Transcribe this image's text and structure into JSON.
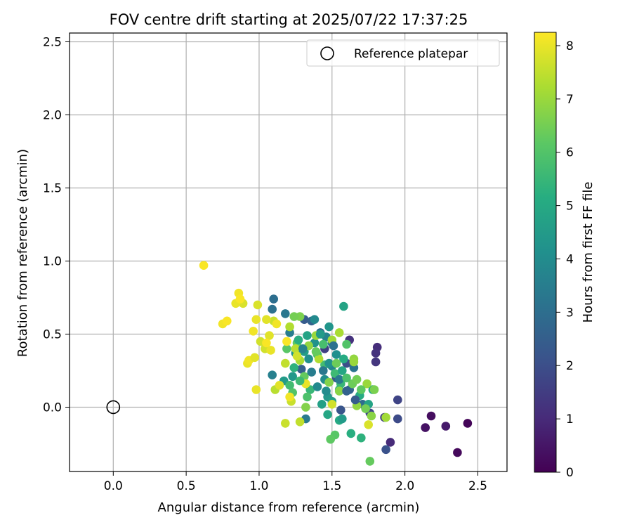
{
  "chart_data": {
    "type": "scatter",
    "title": "FOV centre drift starting at 2025/07/22 17:37:25",
    "xlabel": "Angular distance from reference (arcmin)",
    "ylabel": "Rotation from reference (arcmin)",
    "xlim": [
      -0.3,
      2.7
    ],
    "ylim": [
      -0.44,
      2.56
    ],
    "xticks": [
      "0.0",
      "0.5",
      "1.0",
      "1.5",
      "2.0",
      "2.5"
    ],
    "xtick_values": [
      0,
      0.5,
      1.0,
      1.5,
      2.0,
      2.5
    ],
    "yticks": [
      "0.0",
      "0.5",
      "1.0",
      "1.5",
      "2.0",
      "2.5"
    ],
    "ytick_values": [
      0,
      0.5,
      1.0,
      1.5,
      2.0,
      2.5
    ],
    "grid": true,
    "legend": {
      "entries": [
        "Reference platepar"
      ],
      "placement": "top-right"
    },
    "reference_point": {
      "name": "Reference platepar",
      "x": 0.0,
      "y": 0.0
    },
    "colorbar": {
      "label": "Hours from first FF file",
      "colormap": "viridis",
      "range": [
        0,
        8.25
      ],
      "ticks": [
        "0",
        "1",
        "2",
        "3",
        "4",
        "5",
        "6",
        "7",
        "8"
      ],
      "tick_values": [
        0,
        1,
        2,
        3,
        4,
        5,
        6,
        7,
        8
      ]
    },
    "points": [
      {
        "x": 2.43,
        "y": -0.11,
        "h": 0.1
      },
      {
        "x": 2.36,
        "y": -0.31,
        "h": 0.2
      },
      {
        "x": 2.18,
        "y": -0.06,
        "h": 0.3
      },
      {
        "x": 2.14,
        "y": -0.14,
        "h": 0.4
      },
      {
        "x": 2.28,
        "y": -0.13,
        "h": 0.6
      },
      {
        "x": 1.9,
        "y": -0.24,
        "h": 1.0
      },
      {
        "x": 1.81,
        "y": 0.41,
        "h": 1.1
      },
      {
        "x": 1.8,
        "y": 0.37,
        "h": 1.2
      },
      {
        "x": 1.8,
        "y": 0.31,
        "h": 1.3
      },
      {
        "x": 1.86,
        "y": -0.07,
        "h": 1.5
      },
      {
        "x": 1.95,
        "y": 0.05,
        "h": 1.7
      },
      {
        "x": 1.95,
        "y": -0.08,
        "h": 1.9
      },
      {
        "x": 1.87,
        "y": -0.29,
        "h": 2.1
      },
      {
        "x": 1.62,
        "y": 0.46,
        "h": 1.2
      },
      {
        "x": 1.45,
        "y": 0.4,
        "h": 1.6
      },
      {
        "x": 1.76,
        "y": -0.04,
        "h": 1.8
      },
      {
        "x": 1.6,
        "y": 0.3,
        "h": 2.0
      },
      {
        "x": 1.56,
        "y": -0.02,
        "h": 2.2
      },
      {
        "x": 1.53,
        "y": 0.2,
        "h": 2.3
      },
      {
        "x": 1.31,
        "y": 0.6,
        "h": 2.4
      },
      {
        "x": 1.36,
        "y": 0.59,
        "h": 2.6
      },
      {
        "x": 1.42,
        "y": 0.51,
        "h": 2.8
      },
      {
        "x": 1.29,
        "y": 0.26,
        "h": 2.5
      },
      {
        "x": 1.1,
        "y": 0.74,
        "h": 3.0
      },
      {
        "x": 1.09,
        "y": 0.67,
        "h": 3.1
      },
      {
        "x": 1.18,
        "y": 0.64,
        "h": 3.3
      },
      {
        "x": 1.32,
        "y": -0.08,
        "h": 3.4
      },
      {
        "x": 1.21,
        "y": 0.51,
        "h": 3.5
      },
      {
        "x": 1.46,
        "y": 0.48,
        "h": 3.7
      },
      {
        "x": 1.5,
        "y": 0.44,
        "h": 3.6
      },
      {
        "x": 1.38,
        "y": 0.6,
        "h": 3.9
      },
      {
        "x": 1.62,
        "y": 0.12,
        "h": 2.7
      },
      {
        "x": 1.71,
        "y": 0.02,
        "h": 2.9
      },
      {
        "x": 1.65,
        "y": 0.27,
        "h": 3.2
      },
      {
        "x": 1.5,
        "y": 0.28,
        "h": 3.8
      },
      {
        "x": 1.45,
        "y": 0.19,
        "h": 4.0
      },
      {
        "x": 1.34,
        "y": 0.33,
        "h": 4.1
      },
      {
        "x": 1.38,
        "y": 0.44,
        "h": 4.2
      },
      {
        "x": 1.25,
        "y": 0.37,
        "h": 4.3
      },
      {
        "x": 1.23,
        "y": 0.21,
        "h": 4.4
      },
      {
        "x": 1.17,
        "y": 0.18,
        "h": 4.5
      },
      {
        "x": 1.09,
        "y": 0.22,
        "h": 3.6
      },
      {
        "x": 1.47,
        "y": 0.07,
        "h": 4.4
      },
      {
        "x": 1.5,
        "y": 0.04,
        "h": 4.6
      },
      {
        "x": 1.53,
        "y": 0.36,
        "h": 4.1
      },
      {
        "x": 1.48,
        "y": 0.55,
        "h": 4.3
      },
      {
        "x": 1.58,
        "y": 0.69,
        "h": 4.8
      },
      {
        "x": 1.31,
        "y": 0.38,
        "h": 4.6
      },
      {
        "x": 1.43,
        "y": 0.02,
        "h": 4.7
      },
      {
        "x": 1.47,
        "y": -0.05,
        "h": 4.9
      },
      {
        "x": 1.55,
        "y": -0.09,
        "h": 5.0
      },
      {
        "x": 1.63,
        "y": -0.18,
        "h": 5.2
      },
      {
        "x": 1.7,
        "y": -0.21,
        "h": 5.3
      },
      {
        "x": 1.69,
        "y": 0.08,
        "h": 5.1
      },
      {
        "x": 1.75,
        "y": 0.02,
        "h": 4.8
      },
      {
        "x": 1.78,
        "y": 0.12,
        "h": 5.0
      },
      {
        "x": 1.55,
        "y": 0.12,
        "h": 5.4
      },
      {
        "x": 1.56,
        "y": 0.16,
        "h": 5.5
      },
      {
        "x": 1.52,
        "y": 0.23,
        "h": 5.6
      },
      {
        "x": 1.45,
        "y": 0.29,
        "h": 5.7
      },
      {
        "x": 1.4,
        "y": 0.36,
        "h": 5.8
      },
      {
        "x": 1.35,
        "y": 0.12,
        "h": 5.5
      },
      {
        "x": 1.33,
        "y": 0.07,
        "h": 5.9
      },
      {
        "x": 1.21,
        "y": 0.15,
        "h": 5.7
      },
      {
        "x": 1.23,
        "y": 0.1,
        "h": 6.0
      },
      {
        "x": 1.19,
        "y": 0.4,
        "h": 6.1
      },
      {
        "x": 1.26,
        "y": 0.44,
        "h": 6.2
      },
      {
        "x": 1.31,
        "y": 0.21,
        "h": 6.3
      },
      {
        "x": 1.6,
        "y": 0.43,
        "h": 6.0
      },
      {
        "x": 1.52,
        "y": -0.19,
        "h": 6.1
      },
      {
        "x": 1.49,
        "y": -0.22,
        "h": 6.2
      },
      {
        "x": 1.64,
        "y": 0.16,
        "h": 6.4
      },
      {
        "x": 1.73,
        "y": -0.01,
        "h": 6.5
      },
      {
        "x": 1.76,
        "y": -0.37,
        "h": 6.3
      },
      {
        "x": 1.79,
        "y": 0.12,
        "h": 6.6
      },
      {
        "x": 1.48,
        "y": 0.17,
        "h": 6.7
      },
      {
        "x": 1.55,
        "y": 0.11,
        "h": 6.8
      },
      {
        "x": 1.67,
        "y": 0.19,
        "h": 6.5
      },
      {
        "x": 1.67,
        "y": 0.01,
        "h": 6.9
      },
      {
        "x": 1.77,
        "y": -0.06,
        "h": 6.8
      },
      {
        "x": 1.74,
        "y": 0.16,
        "h": 7.0
      },
      {
        "x": 1.87,
        "y": -0.07,
        "h": 7.1
      },
      {
        "x": 1.65,
        "y": 0.33,
        "h": 6.9
      },
      {
        "x": 1.65,
        "y": 0.31,
        "h": 7.0
      },
      {
        "x": 1.39,
        "y": 0.49,
        "h": 7.0
      },
      {
        "x": 1.32,
        "y": 0.0,
        "h": 6.7
      },
      {
        "x": 1.28,
        "y": 0.62,
        "h": 6.6
      },
      {
        "x": 1.24,
        "y": 0.62,
        "h": 6.5
      },
      {
        "x": 1.55,
        "y": 0.51,
        "h": 7.2
      },
      {
        "x": 1.5,
        "y": 0.46,
        "h": 7.1
      },
      {
        "x": 1.41,
        "y": 0.33,
        "h": 7.3
      },
      {
        "x": 1.28,
        "y": 0.32,
        "h": 7.2
      },
      {
        "x": 1.25,
        "y": 0.4,
        "h": 7.4
      },
      {
        "x": 1.21,
        "y": 0.55,
        "h": 7.3
      },
      {
        "x": 1.18,
        "y": 0.3,
        "h": 7.5
      },
      {
        "x": 1.11,
        "y": 0.12,
        "h": 7.4
      },
      {
        "x": 1.18,
        "y": -0.11,
        "h": 7.6
      },
      {
        "x": 1.28,
        "y": -0.1,
        "h": 7.5
      },
      {
        "x": 1.22,
        "y": 0.04,
        "h": 7.6
      },
      {
        "x": 1.5,
        "y": 0.02,
        "h": 7.7
      },
      {
        "x": 1.75,
        "y": -0.12,
        "h": 7.8
      },
      {
        "x": 1.01,
        "y": 0.45,
        "h": 7.7
      },
      {
        "x": 0.99,
        "y": 0.7,
        "h": 7.8
      },
      {
        "x": 1.07,
        "y": 0.49,
        "h": 7.9
      },
      {
        "x": 1.1,
        "y": 0.59,
        "h": 7.6
      },
      {
        "x": 1.05,
        "y": 0.6,
        "h": 7.9
      },
      {
        "x": 0.98,
        "y": 0.6,
        "h": 8.0
      },
      {
        "x": 0.96,
        "y": 0.52,
        "h": 8.1
      },
      {
        "x": 0.89,
        "y": 0.71,
        "h": 7.8
      },
      {
        "x": 0.84,
        "y": 0.71,
        "h": 8.0
      },
      {
        "x": 0.86,
        "y": 0.78,
        "h": 8.1
      },
      {
        "x": 0.87,
        "y": 0.74,
        "h": 8.2
      },
      {
        "x": 0.75,
        "y": 0.57,
        "h": 8.1
      },
      {
        "x": 0.78,
        "y": 0.59,
        "h": 8.2
      },
      {
        "x": 0.62,
        "y": 0.97,
        "h": 8.2
      },
      {
        "x": 0.92,
        "y": 0.3,
        "h": 8.0
      },
      {
        "x": 0.93,
        "y": 0.32,
        "h": 8.1
      },
      {
        "x": 0.97,
        "y": 0.34,
        "h": 7.9
      },
      {
        "x": 0.98,
        "y": 0.12,
        "h": 8.0
      },
      {
        "x": 1.04,
        "y": 0.4,
        "h": 7.7
      },
      {
        "x": 1.08,
        "y": 0.39,
        "h": 8.0
      },
      {
        "x": 1.05,
        "y": 0.44,
        "h": 8.2
      },
      {
        "x": 1.12,
        "y": 0.57,
        "h": 8.1
      },
      {
        "x": 1.14,
        "y": 0.15,
        "h": 7.9
      },
      {
        "x": 1.21,
        "y": 0.07,
        "h": 8.1
      },
      {
        "x": 1.19,
        "y": 0.45,
        "h": 8.2
      },
      {
        "x": 1.32,
        "y": 0.16,
        "h": 8.0
      },
      {
        "x": 1.26,
        "y": 0.35,
        "h": 7.7
      },
      {
        "x": 1.34,
        "y": 0.42,
        "h": 6.9
      },
      {
        "x": 1.58,
        "y": 0.33,
        "h": 5.1
      },
      {
        "x": 1.57,
        "y": 0.25,
        "h": 4.9
      },
      {
        "x": 1.48,
        "y": 0.3,
        "h": 4.2
      },
      {
        "x": 1.51,
        "y": 0.42,
        "h": 3.1
      },
      {
        "x": 1.44,
        "y": 0.25,
        "h": 3.3
      },
      {
        "x": 1.36,
        "y": 0.24,
        "h": 3.5
      },
      {
        "x": 1.3,
        "y": 0.4,
        "h": 3.7
      },
      {
        "x": 1.4,
        "y": 0.14,
        "h": 3.9
      },
      {
        "x": 1.46,
        "y": 0.11,
        "h": 4.0
      },
      {
        "x": 1.6,
        "y": 0.11,
        "h": 2.6
      },
      {
        "x": 1.66,
        "y": 0.05,
        "h": 2.4
      },
      {
        "x": 1.55,
        "y": 0.19,
        "h": 3.4
      },
      {
        "x": 1.57,
        "y": -0.08,
        "h": 4.5
      },
      {
        "x": 1.42,
        "y": 0.5,
        "h": 4.5
      },
      {
        "x": 1.33,
        "y": 0.49,
        "h": 4.8
      },
      {
        "x": 1.27,
        "y": 0.46,
        "h": 5.2
      },
      {
        "x": 1.24,
        "y": 0.27,
        "h": 5.3
      },
      {
        "x": 1.28,
        "y": 0.18,
        "h": 5.6
      },
      {
        "x": 1.44,
        "y": 0.43,
        "h": 5.8
      },
      {
        "x": 1.39,
        "y": 0.38,
        "h": 6.3
      },
      {
        "x": 1.53,
        "y": 0.3,
        "h": 6.4
      },
      {
        "x": 1.6,
        "y": 0.2,
        "h": 5.9
      },
      {
        "x": 1.7,
        "y": 0.12,
        "h": 6.2
      }
    ]
  }
}
